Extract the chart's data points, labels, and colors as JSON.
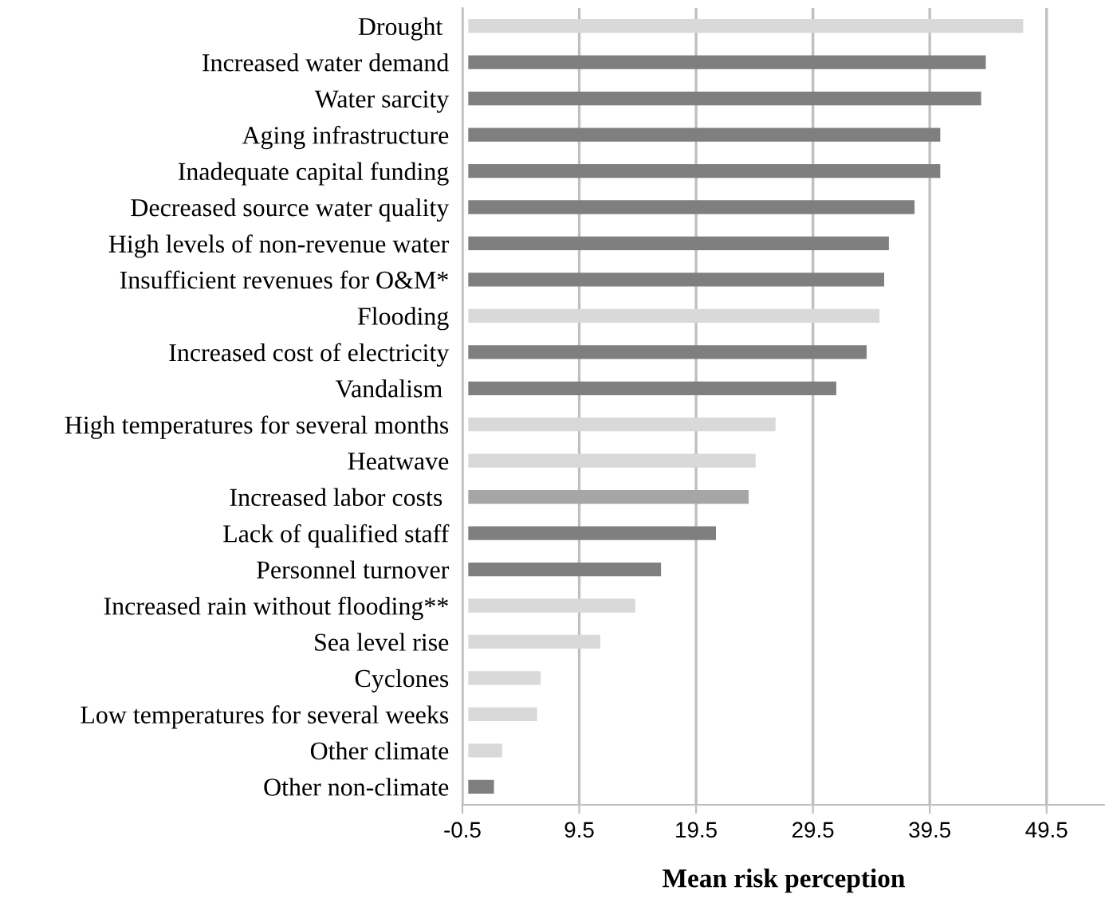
{
  "chart_data": {
    "type": "bar",
    "orientation": "horizontal",
    "xlabel": "Mean risk perception",
    "categories": [
      "Drought ",
      "Increased water demand",
      "Water sarcity",
      "Aging infrastructure",
      "Inadequate capital funding",
      "Decreased source water quality",
      "High levels of non-revenue water",
      "Insufficient revenues for O&M*",
      "Flooding",
      "Increased cost of electricity",
      "Vandalism ",
      "High temperatures for several months",
      "Heatwave",
      "Increased labor costs ",
      "Lack of qualified staff",
      "Personnel turnover",
      "Increased rain without flooding**",
      "Sea level rise",
      "Cyclones",
      "Low temperatures for several weeks",
      "Other climate",
      "Other non-climate"
    ],
    "values": [
      47.5,
      44.3,
      43.9,
      40.4,
      40.4,
      38.2,
      36.0,
      35.6,
      35.2,
      34.1,
      31.5,
      26.3,
      24.6,
      24.0,
      21.2,
      16.5,
      14.3,
      11.3,
      6.2,
      5.9,
      2.9,
      2.2
    ],
    "colors": [
      "#d9d9d9",
      "#7f7f7f",
      "#7f7f7f",
      "#7f7f7f",
      "#7f7f7f",
      "#7f7f7f",
      "#7f7f7f",
      "#7f7f7f",
      "#d9d9d9",
      "#7f7f7f",
      "#7f7f7f",
      "#d9d9d9",
      "#d9d9d9",
      "#a6a6a6",
      "#7f7f7f",
      "#7f7f7f",
      "#d9d9d9",
      "#d9d9d9",
      "#d9d9d9",
      "#d9d9d9",
      "#d9d9d9",
      "#7f7f7f"
    ],
    "xlim": [
      -0.5,
      54.5
    ],
    "xticks": [
      -0.5,
      9.5,
      19.5,
      29.5,
      39.5,
      49.5
    ],
    "grid": "x"
  }
}
